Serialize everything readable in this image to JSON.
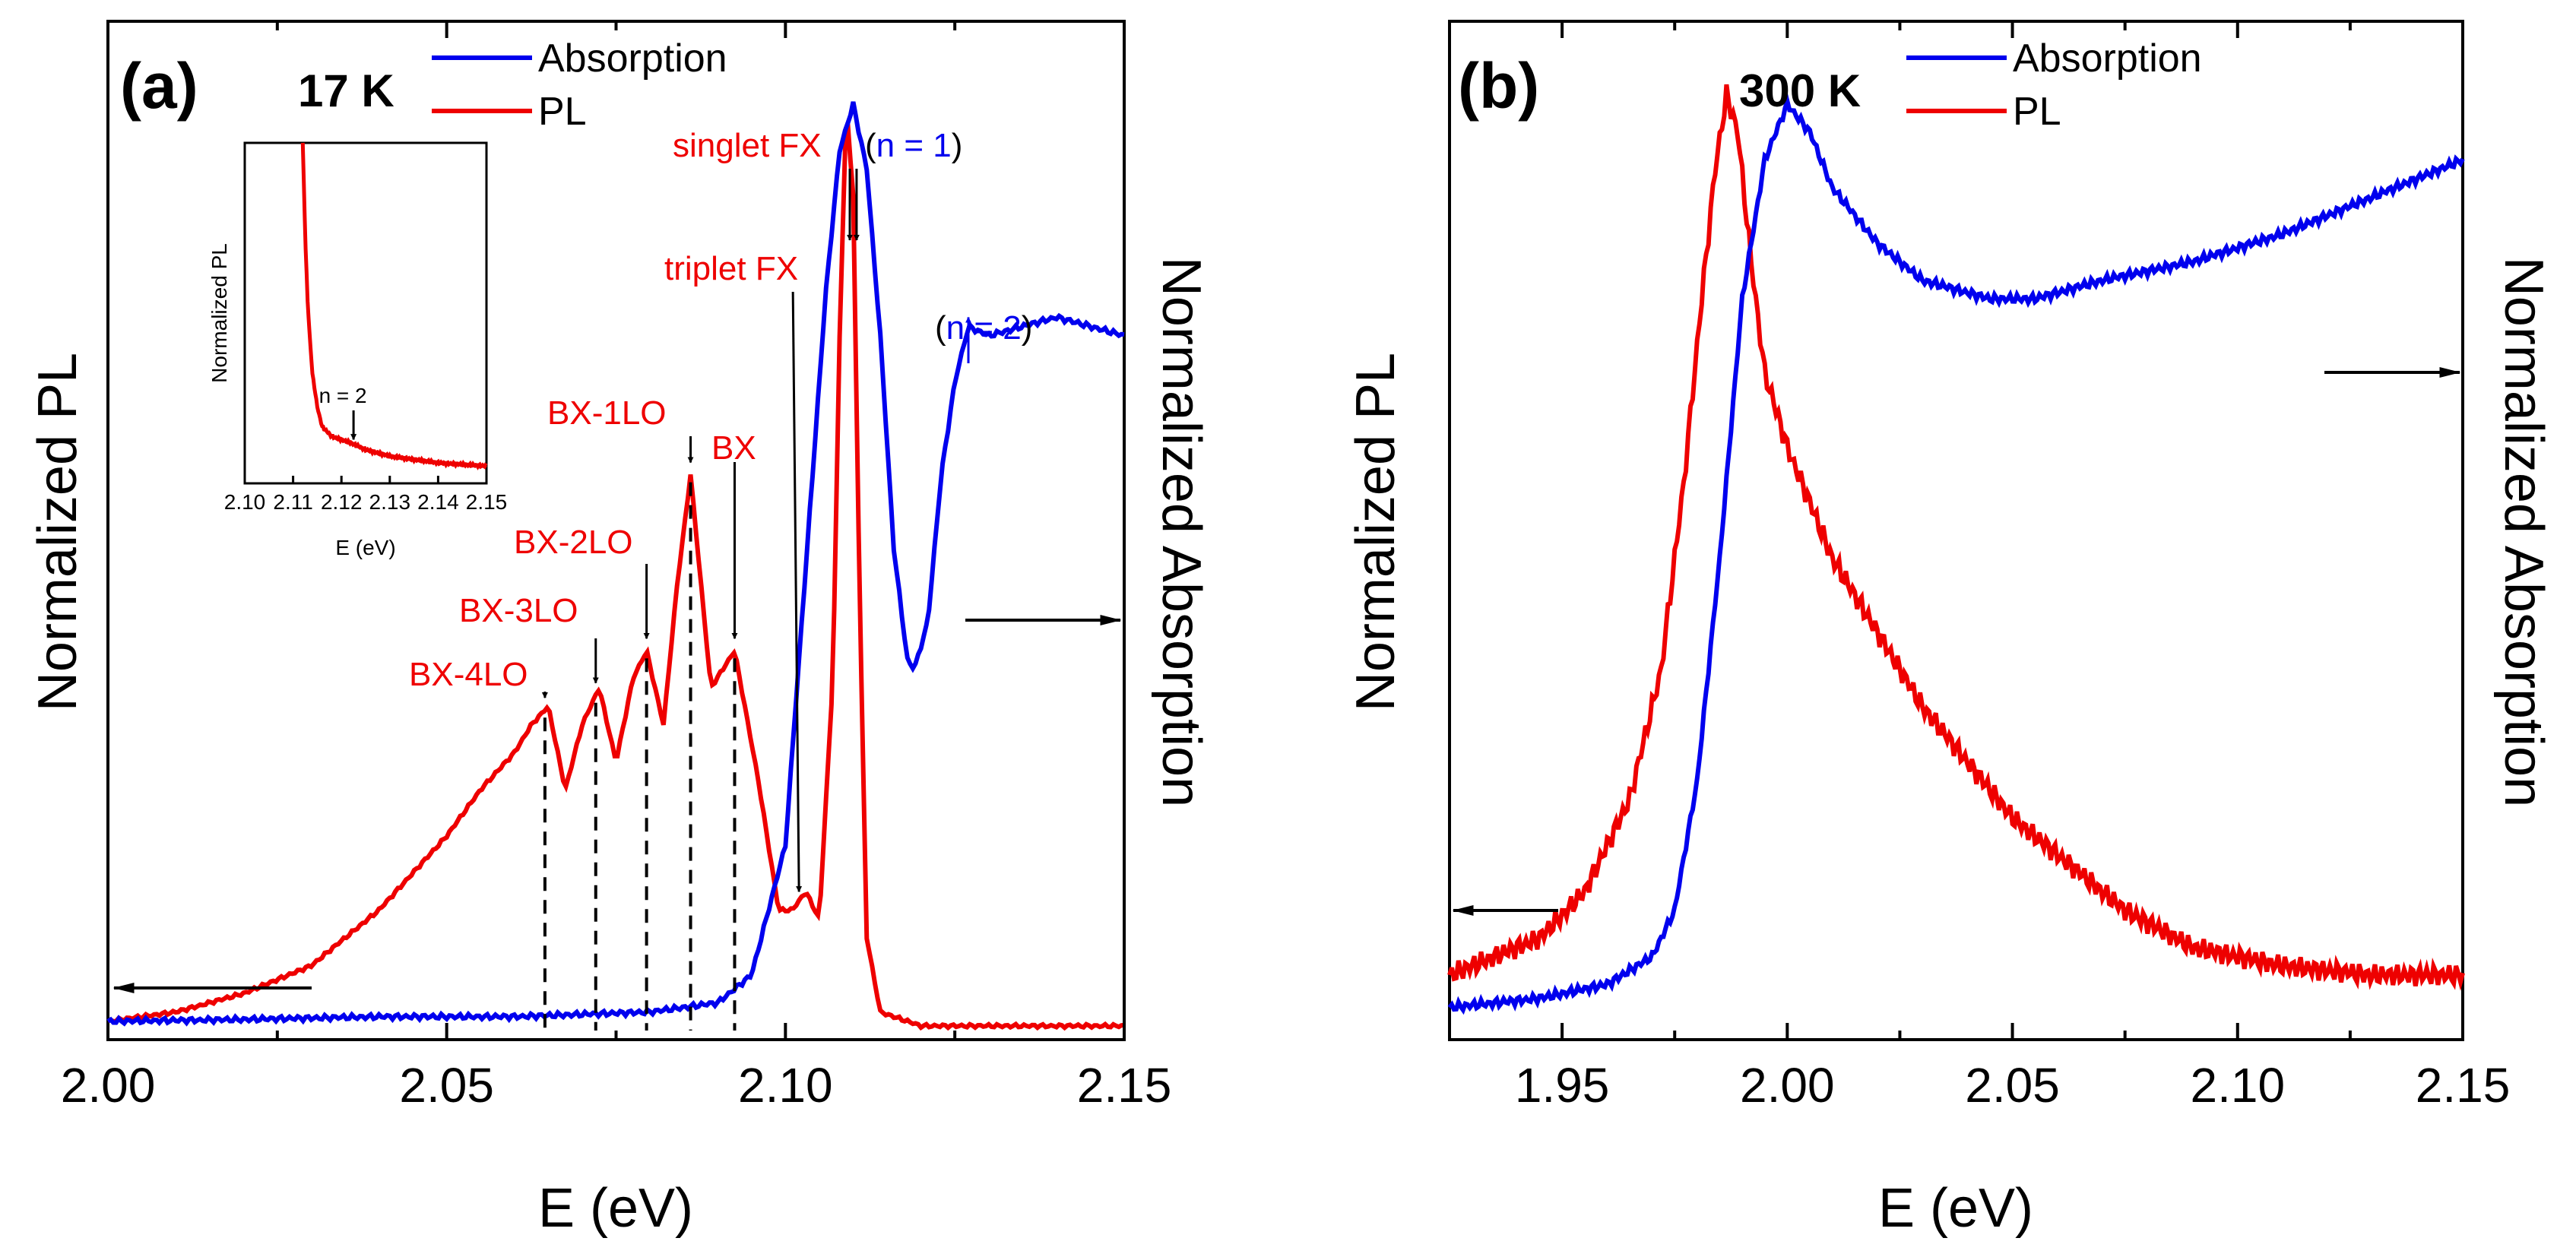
{
  "chart_data": [
    {
      "panel": "(a)",
      "type": "line",
      "temperature": "17 K",
      "xlabel": "E (eV)",
      "ylabel_left": "Normalized PL",
      "ylabel_right": "Normalized Absorption",
      "xlim": [
        2.0,
        2.15
      ],
      "ylim": [
        0,
        1.05
      ],
      "xticks": [
        "2.00",
        "2.05",
        "2.10",
        "2.15"
      ],
      "legend": [
        "Absorption",
        "PL"
      ],
      "colors": {
        "Absorption": "#0000ee",
        "PL": "#ee0000"
      },
      "series": [
        {
          "name": "PL",
          "x": [
            2.0,
            2.01,
            2.02,
            2.03,
            2.04,
            2.05,
            2.055,
            2.06,
            2.0625,
            2.065,
            2.0675,
            2.07,
            2.0725,
            2.075,
            2.0775,
            2.0795,
            2.082,
            2.084,
            2.086,
            2.089,
            2.0925,
            2.096,
            2.099,
            2.101,
            2.103,
            2.105,
            2.107,
            2.108,
            2.109,
            2.11,
            2.111,
            2.112,
            2.114,
            2.12,
            2.15
          ],
          "y": [
            0.01,
            0.02,
            0.04,
            0.07,
            0.13,
            0.21,
            0.26,
            0.3,
            0.33,
            0.35,
            0.26,
            0.33,
            0.37,
            0.29,
            0.38,
            0.41,
            0.33,
            0.48,
            0.6,
            0.37,
            0.41,
            0.27,
            0.13,
            0.13,
            0.15,
            0.12,
            0.38,
            0.75,
            1.0,
            0.9,
            0.45,
            0.1,
            0.02,
            0.005,
            0.005
          ]
        },
        {
          "name": "Absorption",
          "x": [
            2.0,
            2.02,
            2.04,
            2.06,
            2.08,
            2.09,
            2.095,
            2.1,
            2.103,
            2.106,
            2.108,
            2.11,
            2.112,
            2.114,
            2.116,
            2.118,
            2.119,
            2.121,
            2.123,
            2.125,
            2.127,
            2.13,
            2.135,
            2.14,
            2.15
          ],
          "y": [
            0.01,
            0.012,
            0.015,
            0.015,
            0.02,
            0.03,
            0.06,
            0.2,
            0.5,
            0.8,
            0.95,
            1.0,
            0.93,
            0.75,
            0.52,
            0.4,
            0.39,
            0.44,
            0.6,
            0.7,
            0.76,
            0.75,
            0.76,
            0.77,
            0.75
          ]
        }
      ],
      "annotations": {
        "singlet_fx": "singlet FX",
        "n1": "(n = 1)",
        "triplet_fx": "triplet FX",
        "n2": "(n = 2)",
        "bx": "BX",
        "bx1lo": "BX-1LO",
        "bx2lo": "BX-2LO",
        "bx3lo": "BX-3LO",
        "bx4lo": "BX-4LO"
      },
      "peak_markers_eV": {
        "BX-4LO": 2.0645,
        "BX-3LO": 2.072,
        "BX-2LO": 2.0795,
        "BX-1LO": 2.086,
        "BX": 2.0925,
        "triplet FX": 2.102,
        "singlet FX": 2.1095,
        "n = 1": 2.1105,
        "n = 2": 2.127
      },
      "inset": {
        "xlabel": "E (eV)",
        "ylabel": "Normalized PL",
        "xlim": [
          2.1,
          2.15
        ],
        "xticks": [
          "2.10",
          "2.11",
          "2.12",
          "2.13",
          "2.14",
          "2.15"
        ],
        "annotation": "n = 2",
        "annotation_x": 2.1225,
        "series": {
          "name": "PL",
          "x": [
            2.112,
            2.1125,
            2.113,
            2.1135,
            2.114,
            2.115,
            2.116,
            2.118,
            2.12,
            2.122,
            2.125,
            2.13,
            2.14,
            2.15
          ],
          "y": [
            1.0,
            0.72,
            0.52,
            0.4,
            0.3,
            0.2,
            0.14,
            0.11,
            0.1,
            0.09,
            0.07,
            0.05,
            0.03,
            0.02
          ]
        }
      }
    },
    {
      "panel": "(b)",
      "type": "line",
      "temperature": "300 K",
      "xlabel": "E (eV)",
      "ylabel_left": "Normalized PL",
      "ylabel_right": "Normalized Absorption",
      "xlim": [
        1.925,
        2.15
      ],
      "ylim": [
        0,
        1.05
      ],
      "xticks": [
        "1.95",
        "2.00",
        "2.05",
        "2.10",
        "2.15"
      ],
      "legend": [
        "Absorption",
        "PL"
      ],
      "colors": {
        "Absorption": "#0000ee",
        "PL": "#ee0000"
      },
      "series": [
        {
          "name": "PL",
          "x": [
            1.925,
            1.935,
            1.945,
            1.955,
            1.965,
            1.972,
            1.977,
            1.981,
            1.984,
            1.9865,
            1.989,
            1.992,
            1.995,
            2.0,
            2.01,
            2.02,
            2.03,
            2.04,
            2.05,
            2.06,
            2.075,
            2.09,
            2.11,
            2.13,
            2.15
          ],
          "y": [
            0.05,
            0.07,
            0.09,
            0.14,
            0.24,
            0.38,
            0.58,
            0.78,
            0.92,
            1.0,
            0.96,
            0.82,
            0.7,
            0.62,
            0.5,
            0.42,
            0.34,
            0.28,
            0.22,
            0.18,
            0.12,
            0.08,
            0.06,
            0.05,
            0.05
          ]
        },
        {
          "name": "Absorption",
          "x": [
            1.925,
            1.945,
            1.96,
            1.97,
            1.975,
            1.98,
            1.985,
            1.99,
            1.995,
            2.0,
            2.005,
            2.01,
            2.02,
            2.03,
            2.045,
            2.055,
            2.07,
            2.09,
            2.11,
            2.13,
            2.15
          ],
          "y": [
            0.015,
            0.025,
            0.04,
            0.07,
            0.12,
            0.26,
            0.5,
            0.78,
            0.93,
            0.99,
            0.96,
            0.9,
            0.84,
            0.8,
            0.78,
            0.78,
            0.8,
            0.82,
            0.85,
            0.89,
            0.93
          ]
        }
      ]
    }
  ]
}
